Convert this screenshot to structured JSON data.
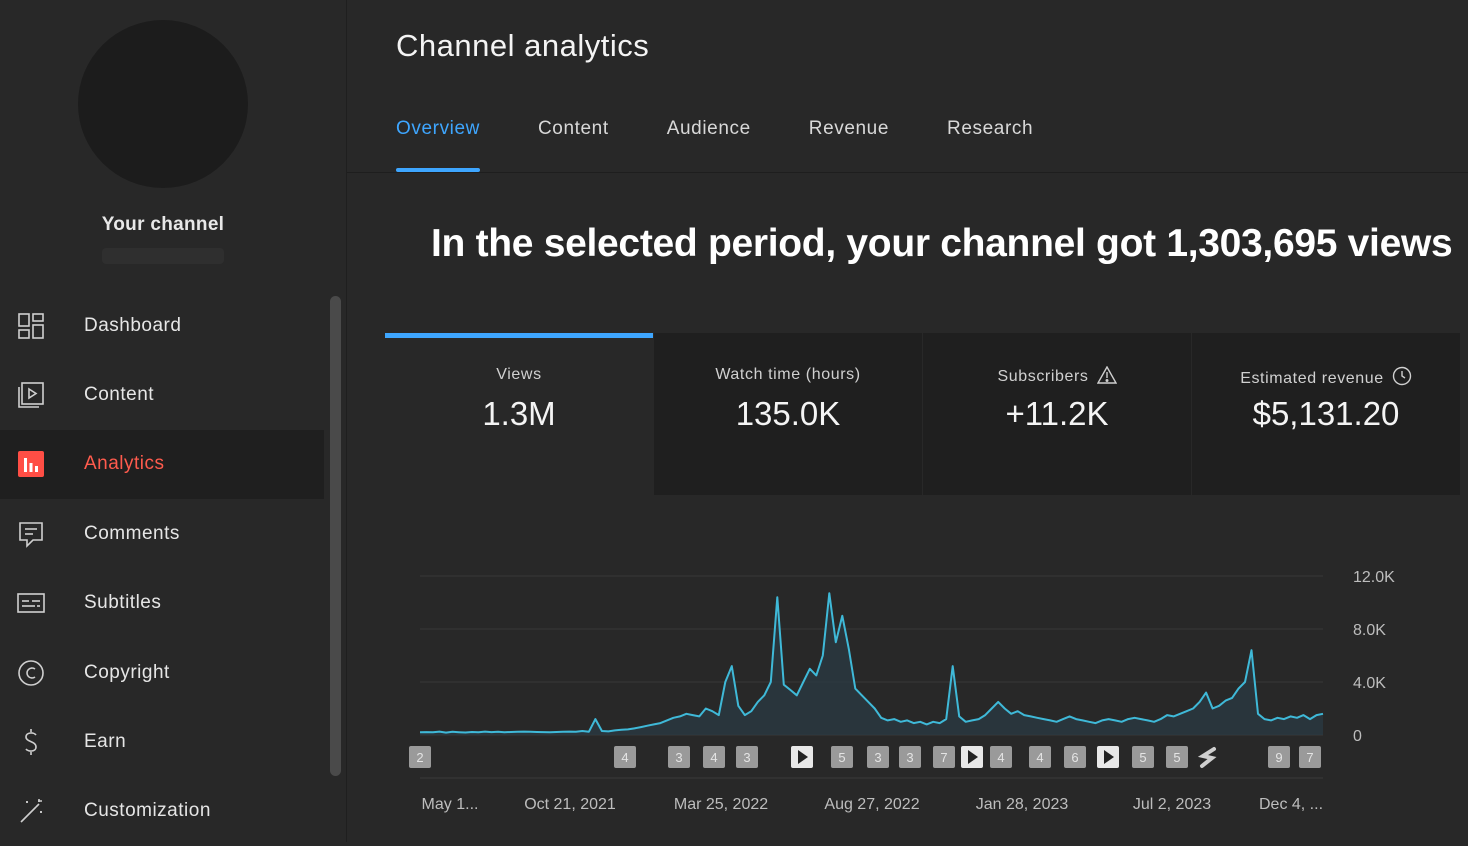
{
  "sidebar": {
    "channel_name": "Your channel",
    "items": [
      {
        "label": "Dashboard",
        "icon": "dashboard-icon"
      },
      {
        "label": "Content",
        "icon": "content-icon"
      },
      {
        "label": "Analytics",
        "icon": "analytics-icon",
        "active": true
      },
      {
        "label": "Comments",
        "icon": "comments-icon"
      },
      {
        "label": "Subtitles",
        "icon": "subtitles-icon"
      },
      {
        "label": "Copyright",
        "icon": "copyright-icon"
      },
      {
        "label": "Earn",
        "icon": "earn-icon"
      },
      {
        "label": "Customization",
        "icon": "customization-icon"
      }
    ]
  },
  "header": {
    "title": "Channel analytics"
  },
  "tabs": [
    {
      "label": "Overview",
      "active": true
    },
    {
      "label": "Content"
    },
    {
      "label": "Audience"
    },
    {
      "label": "Revenue"
    },
    {
      "label": "Research"
    }
  ],
  "headline": "In the selected period, your channel got 1,303,695 views",
  "metrics": [
    {
      "label": "Views",
      "value": "1.3M",
      "active": true
    },
    {
      "label": "Watch time (hours)",
      "value": "135.0K"
    },
    {
      "label": "Subscribers",
      "value": "+11.2K",
      "icon": "warning-icon"
    },
    {
      "label": "Estimated revenue",
      "value": "$5,131.20",
      "icon": "clock-icon"
    }
  ],
  "colors": {
    "accent": "#3ea6ff",
    "active_nav": "#ff5b4d",
    "line": "#3fb9d8"
  },
  "chart_data": {
    "type": "line",
    "ylim": [
      0,
      12000
    ],
    "y_ticks": [
      "12.0K",
      "8.0K",
      "4.0K",
      "0"
    ],
    "x_ticks": [
      "May 1...",
      "Oct 21, 2021",
      "Mar 25, 2022",
      "Aug 27, 2022",
      "Jan 28, 2023",
      "Jul 2, 2023",
      "Dec 4, ..."
    ],
    "series": [
      {
        "values": [
          200,
          220,
          200,
          260,
          180,
          240,
          210,
          190,
          230,
          200,
          260,
          220,
          240,
          210,
          230,
          250,
          260,
          240,
          230,
          220,
          210,
          230,
          250,
          260,
          240,
          300,
          250,
          1200,
          300,
          270,
          350,
          400,
          420,
          500,
          600,
          700,
          800,
          900,
          1100,
          1300,
          1400,
          1600,
          1500,
          1400,
          2000,
          1800,
          1500,
          4000,
          5200,
          2200,
          1500,
          1800,
          2500,
          3000,
          4000,
          10400,
          3800,
          3400,
          3000,
          4000,
          5000,
          4500,
          6000,
          10700,
          7000,
          9000,
          6500,
          3500,
          3000,
          2500,
          2000,
          1300,
          1100,
          1200,
          1000,
          1100,
          900,
          1000,
          800,
          1000,
          900,
          1200,
          5200,
          1400,
          1000,
          1100,
          1200,
          1500,
          2000,
          2500,
          2000,
          1600,
          1800,
          1500,
          1400,
          1300,
          1200,
          1100,
          1000,
          1200,
          1400,
          1200,
          1100,
          1000,
          900,
          1100,
          1200,
          1100,
          1000,
          1200,
          1300,
          1200,
          1100,
          1000,
          1200,
          1500,
          1400,
          1600,
          1800,
          2000,
          2500,
          3200,
          2000,
          2200,
          2600,
          2800,
          3500,
          4000,
          6400,
          1600,
          1200,
          1100,
          1300,
          1200,
          1400,
          1300,
          1500,
          1200,
          1500,
          1600
        ]
      }
    ],
    "markers": [
      "2",
      "4",
      "3",
      "4",
      "3",
      "play",
      "5",
      "3",
      "3",
      "7",
      "play",
      "4",
      "4",
      "6",
      "play",
      "5",
      "5",
      "shorts",
      "9",
      "7"
    ]
  }
}
